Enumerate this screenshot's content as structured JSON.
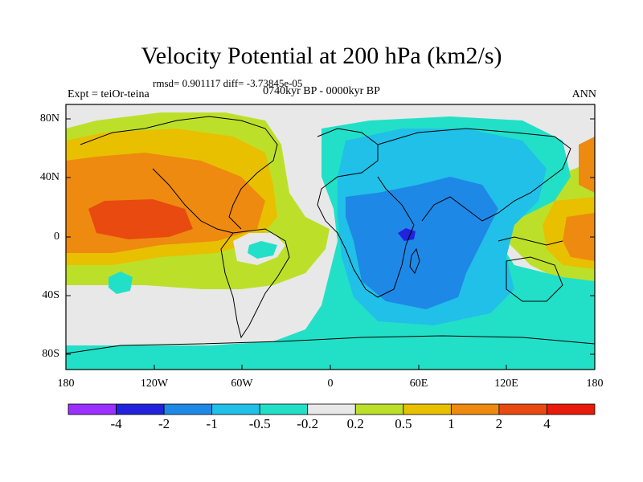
{
  "figure": {
    "title": "Velocity Potential at 200 hPa (km2/s)",
    "stats": "rmsd= 0.901117 diff= -3.73845e-05",
    "experiment": "Expt = teiOr-teina",
    "period": "0740kyr BP - 0000kyr BP",
    "season": "ANN"
  },
  "axes": {
    "y_ticks": [
      "80N",
      "40N",
      "0",
      "40S",
      "80S"
    ],
    "x_ticks": [
      "180",
      "120W",
      "60W",
      "0",
      "60E",
      "120E",
      "180"
    ]
  },
  "colorbar": {
    "labels": [
      "-4",
      "-2",
      "-1",
      "-0.5",
      "-0.2",
      "0.2",
      "0.5",
      "1",
      "2",
      "4"
    ],
    "colors": [
      "#9b30ff",
      "#2222dd",
      "#1e88e6",
      "#20c0e8",
      "#22e0c8",
      "#e8e8e8",
      "#bce02a",
      "#e8c000",
      "#ee8a10",
      "#e84a10",
      "#e81a0a"
    ]
  }
}
